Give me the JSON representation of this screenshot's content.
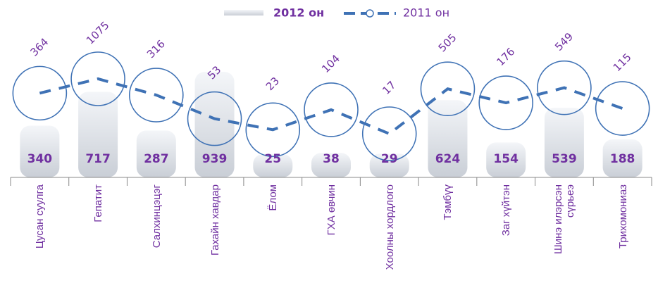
{
  "chart_data": {
    "type": "bar+line",
    "categories": [
      "Цусан суулга",
      "Гепатит",
      "Салхинцэцэг",
      "Гахайн хавдар",
      "Ёлом",
      "ГХА өвчин",
      "Хоолны хордлого",
      "Тэмбүү",
      "Заг хүйтэн",
      "Шинэ илэрсэн сүрьеэ",
      "Трихомониаз"
    ],
    "series": [
      {
        "name": "2012 он",
        "color": "#dfe4ec",
        "label_color": "#7030a0",
        "values": [
          340,
          717,
          287,
          939,
          25,
          38,
          29,
          624,
          154,
          539,
          188
        ]
      },
      {
        "name": "2011 он",
        "color": "#3f72b5",
        "label_color": "#7030a0",
        "values": [
          364,
          1075,
          316,
          53,
          23,
          104,
          17,
          505,
          176,
          549,
          115
        ],
        "log_scale": true
      }
    ],
    "legend": "top"
  }
}
